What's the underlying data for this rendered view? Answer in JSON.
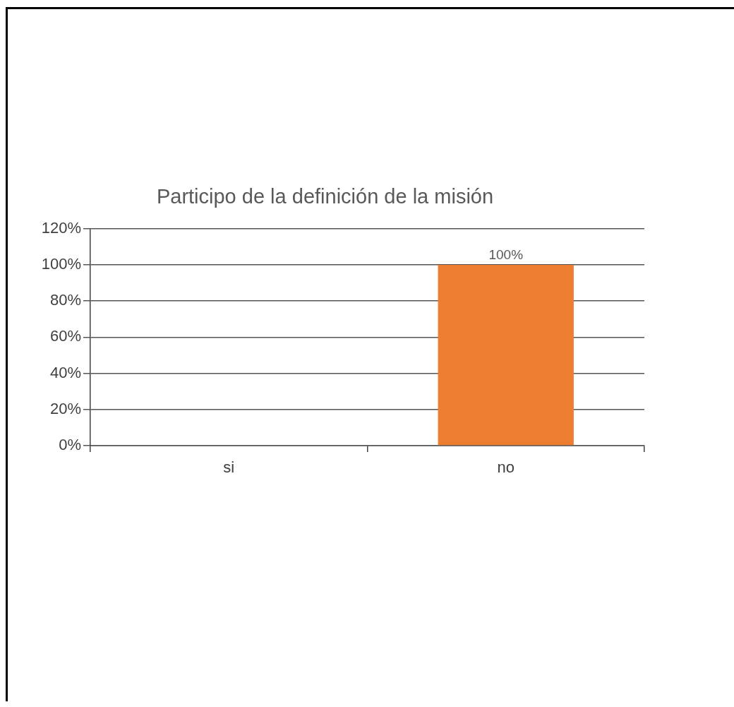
{
  "chart_data": {
    "type": "bar",
    "title": "Participo de la definición de la misión",
    "categories": [
      "si",
      "no"
    ],
    "series": [
      {
        "color": "#ed7d31",
        "values": [
          0,
          100
        ],
        "value_labels": [
          null,
          "100%"
        ]
      }
    ],
    "ylim": [
      0,
      120
    ],
    "yticks": [
      {
        "value": 0,
        "label": "0%"
      },
      {
        "value": 20,
        "label": "20%"
      },
      {
        "value": 40,
        "label": "40%"
      },
      {
        "value": 60,
        "label": "60%"
      },
      {
        "value": 80,
        "label": "80%"
      },
      {
        "value": 100,
        "label": "100%"
      },
      {
        "value": 120,
        "label": "120%"
      }
    ],
    "grid": "y",
    "legend": false
  }
}
